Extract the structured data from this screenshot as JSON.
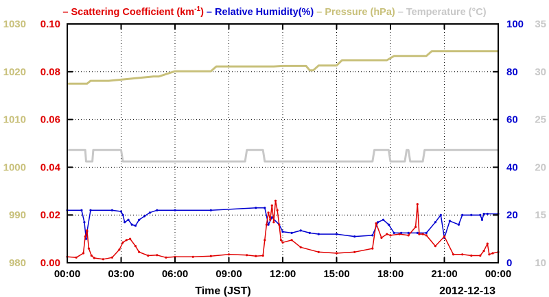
{
  "chart_data": {
    "type": "line",
    "legend": {
      "placement": "top",
      "entries": [
        {
          "dash": "–",
          "label": "Scattering Coefficient (km",
          "sup": "-1",
          "suffix": ")",
          "color": "#e00000"
        },
        {
          "dash": "–",
          "label": "Relative Humidity(%)",
          "color": "#0000d0"
        },
        {
          "dash": "–",
          "label": "Pressure (hPa)",
          "color": "#c8c07a"
        },
        {
          "dash": "–",
          "label": "Temperature (°C)",
          "color": "#c8c8c8"
        }
      ]
    },
    "xlabel": "Time (JST)",
    "date_label": "2012-12-13",
    "xlim": [
      0,
      24
    ],
    "x_ticks": [
      "00:00",
      "03:00",
      "06:00",
      "09:00",
      "12:00",
      "15:00",
      "18:00",
      "21:00",
      "00:00"
    ],
    "grid": true,
    "axes": {
      "pressure": {
        "side": "left-outer",
        "ylim": [
          980,
          1030
        ],
        "ticks": [
          "980",
          "990",
          "1000",
          "1010",
          "1020",
          "1030"
        ],
        "color": "#c8c07a"
      },
      "scattering": {
        "side": "left-inner",
        "ylim": [
          0,
          0.1
        ],
        "ticks": [
          "0.00",
          "0.02",
          "0.04",
          "0.06",
          "0.08",
          "0.10"
        ],
        "color": "#e00000"
      },
      "humidity": {
        "side": "right-inner",
        "ylim": [
          0,
          100
        ],
        "ticks": [
          "0",
          "20",
          "40",
          "60",
          "80",
          "100"
        ],
        "color": "#0000d0"
      },
      "temperature": {
        "side": "right-outer",
        "ylim": [
          10,
          35
        ],
        "ticks": [
          "10",
          "15",
          "20",
          "25",
          "30",
          "35"
        ],
        "color": "#c8c8c8"
      }
    },
    "series": [
      {
        "name": "Scattering Coefficient",
        "axis": "scattering",
        "color": "#e00000",
        "markers": true,
        "x": [
          0,
          0.5,
          0.9,
          1.0,
          1.1,
          1.2,
          1.35,
          1.5,
          2.0,
          2.5,
          2.9,
          3.1,
          3.3,
          3.5,
          3.8,
          4.0,
          4.5,
          5.0,
          5.5,
          6.0,
          7.0,
          8.0,
          9.0,
          10.0,
          10.5,
          10.9,
          11.0,
          11.1,
          11.2,
          11.3,
          11.4,
          11.5,
          11.6,
          11.7,
          11.8,
          11.9,
          12.0,
          12.5,
          13.0,
          14.0,
          15.0,
          16.0,
          17.0,
          17.2,
          17.5,
          17.8,
          18.0,
          18.5,
          19.0,
          19.4,
          19.5,
          19.6,
          19.8,
          20.0,
          20.5,
          21.0,
          21.5,
          22.0,
          22.5,
          23.0,
          23.2,
          23.4,
          23.5,
          23.7,
          24.0
        ],
        "y": [
          0.0025,
          0.0022,
          0.004,
          0.011,
          0.0135,
          0.006,
          0.003,
          0.002,
          0.0015,
          0.0022,
          0.0055,
          0.0085,
          0.0095,
          0.01,
          0.007,
          0.0045,
          0.003,
          0.0032,
          0.0022,
          0.0025,
          0.0025,
          0.0028,
          0.0035,
          0.0032,
          0.0028,
          0.003,
          0.0095,
          0.016,
          0.021,
          0.018,
          0.024,
          0.017,
          0.026,
          0.022,
          0.016,
          0.0095,
          0.0085,
          0.0095,
          0.0065,
          0.0045,
          0.004,
          0.0045,
          0.006,
          0.0165,
          0.0105,
          0.012,
          0.0115,
          0.012,
          0.0115,
          0.015,
          0.0245,
          0.012,
          0.012,
          0.0115,
          0.007,
          0.011,
          0.0035,
          0.0035,
          0.003,
          0.003,
          0.005,
          0.008,
          0.0035,
          0.004,
          0.0045
        ]
      },
      {
        "name": "Relative Humidity",
        "axis": "humidity",
        "color": "#0000d0",
        "markers": true,
        "x": [
          0,
          0.8,
          0.95,
          1.05,
          1.1,
          1.3,
          2.5,
          3.0,
          3.1,
          3.2,
          3.4,
          3.6,
          3.8,
          4.0,
          4.3,
          4.6,
          5.0,
          6.0,
          8.0,
          10.5,
          11.0,
          11.2,
          11.4,
          11.8,
          12.0,
          12.5,
          13.0,
          13.5,
          14.0,
          15.0,
          16.0,
          17.0,
          17.3,
          17.6,
          17.9,
          18.2,
          18.6,
          19.0,
          19.5,
          20.0,
          20.5,
          20.8,
          21.0,
          21.3,
          21.8,
          22.0,
          22.5,
          23.0,
          23.1,
          23.2,
          23.4,
          24.0
        ],
        "y": [
          22,
          22,
          17,
          10,
          13,
          22,
          22,
          21.5,
          20,
          17,
          18,
          16,
          15.5,
          18,
          19.5,
          21,
          22,
          22,
          22,
          23,
          23,
          16,
          19,
          16,
          13,
          12.5,
          13.5,
          12.5,
          12,
          12,
          11,
          11.5,
          17,
          18,
          16,
          12.5,
          12.5,
          12.5,
          12.5,
          12.5,
          17,
          20,
          10.5,
          17.5,
          16,
          20,
          20,
          20,
          18,
          20.5,
          20.5,
          20.5
        ]
      },
      {
        "name": "Pressure",
        "axis": "pressure",
        "color": "#c8c07a",
        "markers": false,
        "x": [
          0,
          1.1,
          1.3,
          2.3,
          4.8,
          5.1,
          6.0,
          8.0,
          8.3,
          11.5,
          12.0,
          13.3,
          13.5,
          13.7,
          14.0,
          15.0,
          15.3,
          17.8,
          18.2,
          20.0,
          20.3,
          24.0
        ],
        "y": [
          1017.5,
          1017.5,
          1018.1,
          1018.1,
          1019,
          1019,
          1020.1,
          1020.1,
          1021.1,
          1021.1,
          1021.2,
          1021.2,
          1020.3,
          1020.3,
          1021.3,
          1021.3,
          1022.4,
          1022.4,
          1023.3,
          1023.3,
          1024.3,
          1024.3
        ]
      },
      {
        "name": "Temperature",
        "axis": "temperature",
        "color": "#c8c8c8",
        "markers": false,
        "x": [
          0,
          1.0,
          1.05,
          1.4,
          1.45,
          3.0,
          3.1,
          9.9,
          10.0,
          10.9,
          11.0,
          17.0,
          17.1,
          17.9,
          18.0,
          18.8,
          18.9,
          19.0,
          19.1,
          19.8,
          19.9,
          20.0,
          20.1,
          24.0
        ],
        "y": [
          21.8,
          21.8,
          20.6,
          20.6,
          21.8,
          21.8,
          20.6,
          20.6,
          21.8,
          21.8,
          20.6,
          20.6,
          21.8,
          21.8,
          20.6,
          20.6,
          21.8,
          21.8,
          20.6,
          20.6,
          21.8,
          21.8,
          21.8,
          21.8
        ]
      }
    ]
  }
}
